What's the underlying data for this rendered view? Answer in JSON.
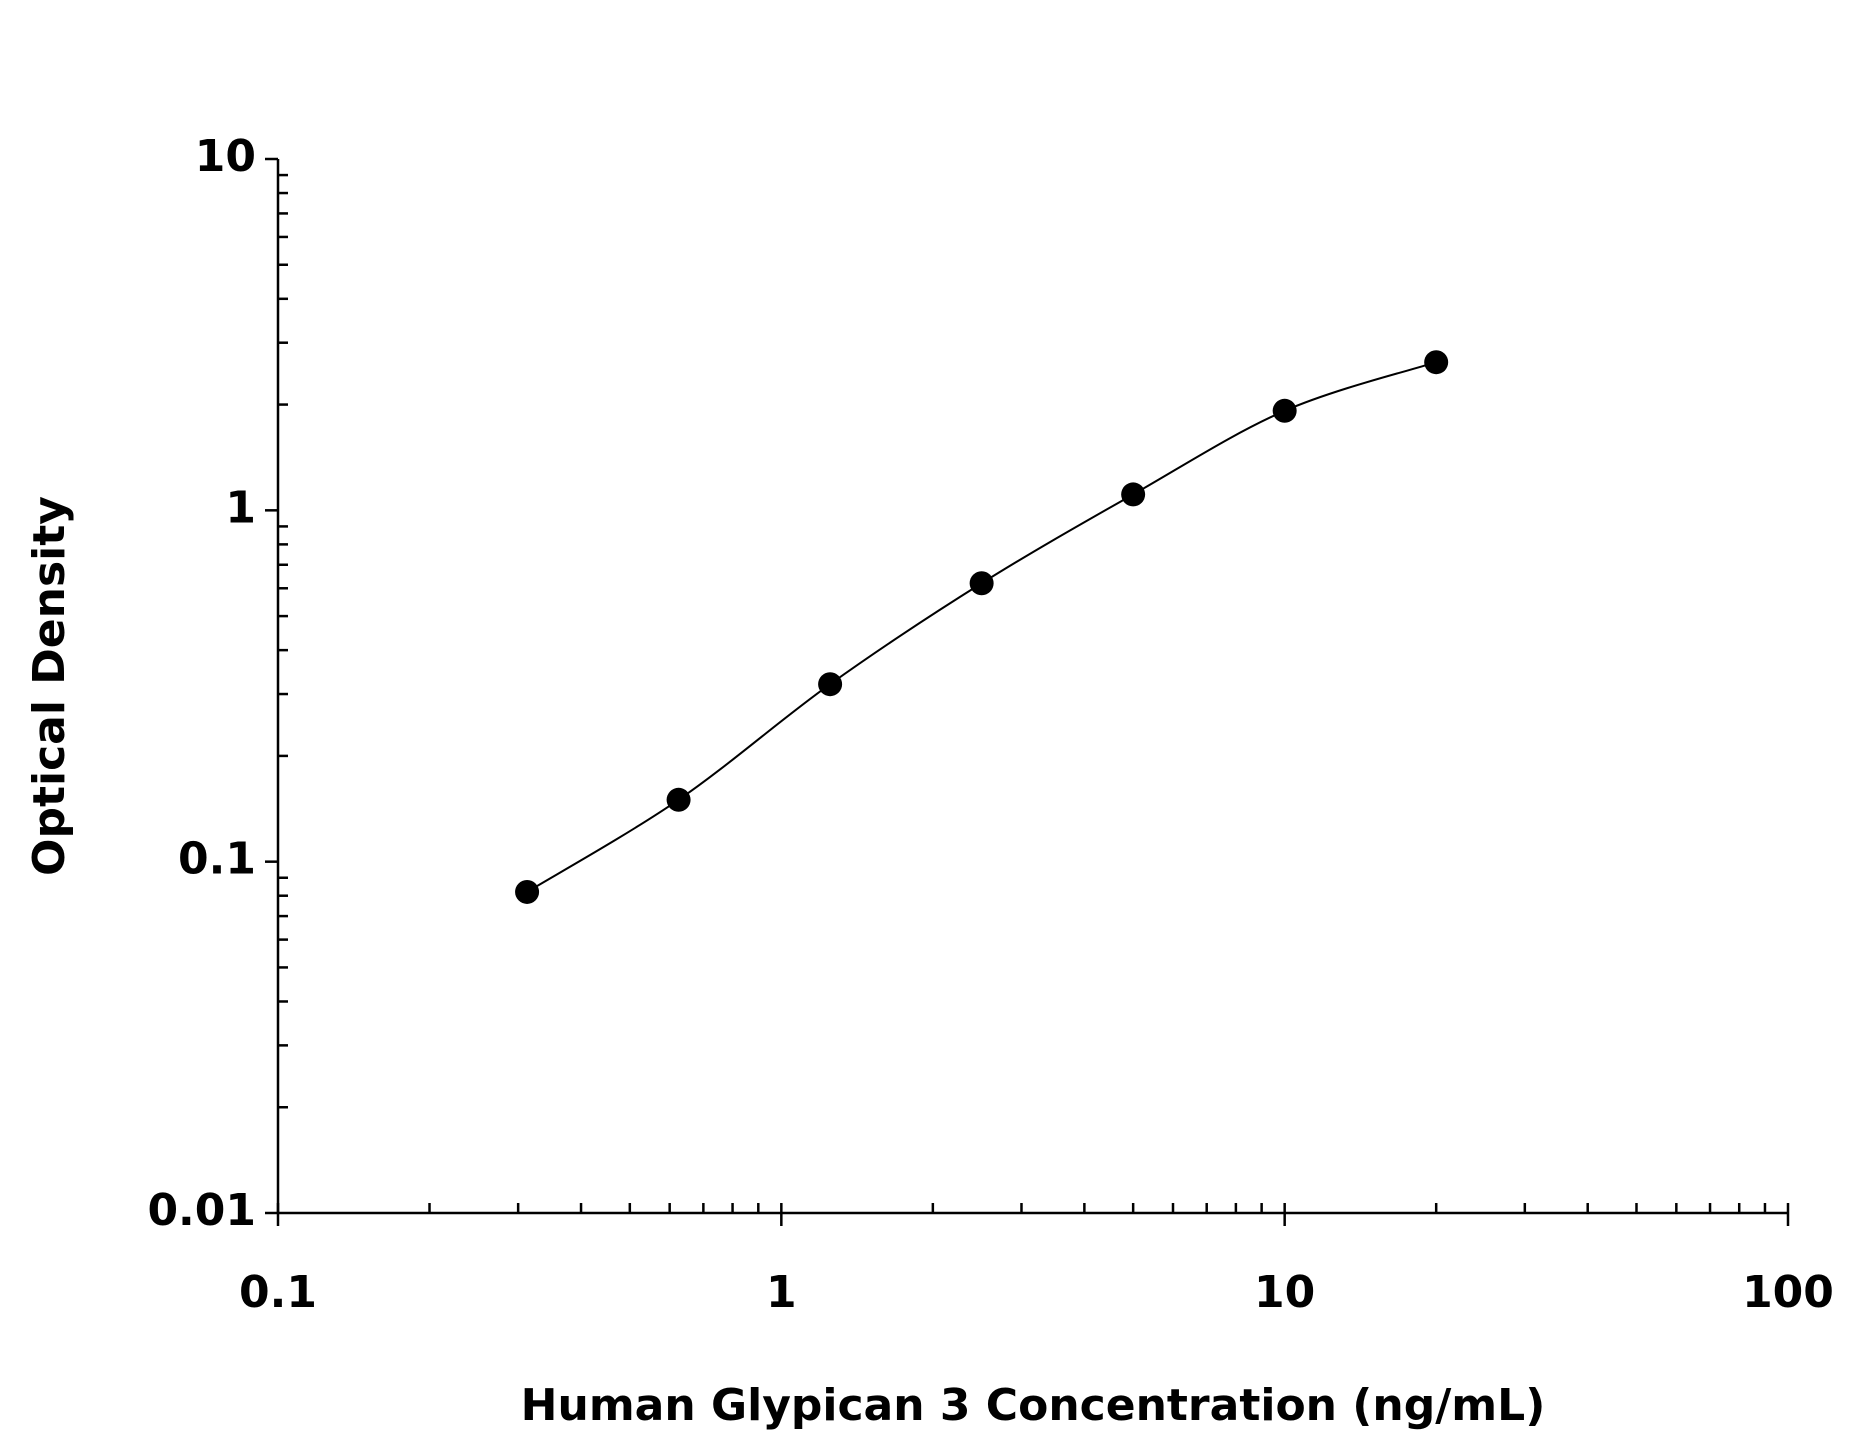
{
  "chart_data": {
    "type": "scatter",
    "x_label": "Human Glypican 3 Concentration (ng/mL)",
    "y_label": "Optical Density",
    "x": [
      0.3125,
      0.625,
      1.25,
      2.5,
      5,
      10,
      20
    ],
    "series": [
      {
        "color": "#000000",
        "values": [
          0.082,
          0.15,
          0.32,
          0.62,
          1.11,
          1.92,
          2.64
        ]
      }
    ],
    "xlim": [
      0.1,
      100
    ],
    "ylim": [
      0.01,
      10
    ],
    "xticks": [
      0.1,
      1,
      10,
      100
    ],
    "yticks": [
      0.01,
      0.1,
      1,
      10
    ],
    "xscale": "log",
    "yscale": "log",
    "fit_curve": true
  }
}
